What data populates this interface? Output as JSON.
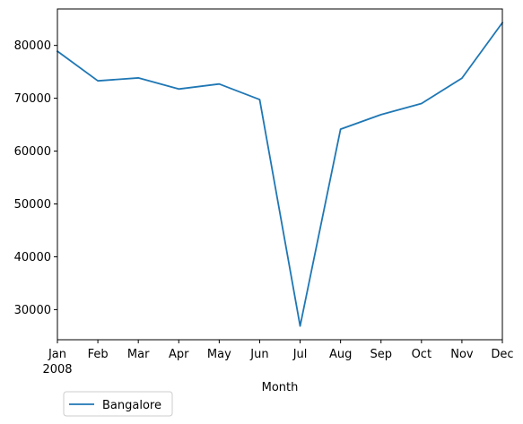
{
  "chart_data": {
    "type": "line",
    "title": "",
    "xlabel": "Month",
    "ylabel": "",
    "categories": [
      "Jan",
      "Feb",
      "Mar",
      "Apr",
      "May",
      "Jun",
      "Jul",
      "Aug",
      "Sep",
      "Oct",
      "Nov",
      "Dec"
    ],
    "year_label": "2008",
    "series": [
      {
        "name": "Bangalore",
        "color": "#1f77b4",
        "values": [
          78900,
          73300,
          73850,
          71750,
          72700,
          69750,
          26900,
          64150,
          66900,
          69000,
          73800,
          84300
        ]
      }
    ],
    "ylim": [
      24300,
      86900
    ],
    "yticks": [
      30000,
      40000,
      50000,
      60000,
      70000,
      80000
    ],
    "grid": false,
    "legend_position": "bottom-left"
  }
}
